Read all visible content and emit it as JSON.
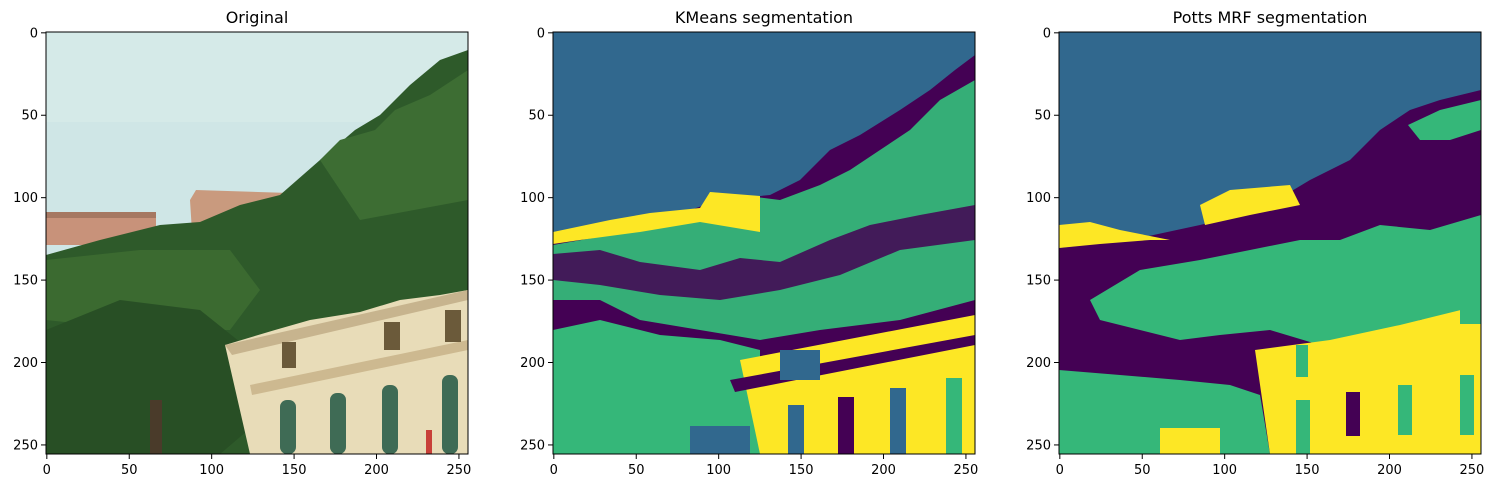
{
  "chart_data": [
    {
      "type": "image",
      "title": "Original",
      "content": "photo of a hillside with green trees, light sky and cream-colored buildings with arched green-shuttered windows",
      "x_ticks": [
        0,
        50,
        100,
        150,
        200,
        250
      ],
      "y_ticks": [
        0,
        50,
        100,
        150,
        200,
        250
      ],
      "xlim": [
        0,
        256
      ],
      "ylim": [
        256,
        0
      ],
      "colors": {
        "sky": "#cfe6e6",
        "foliage": "#2e5a2a",
        "building": "#e8dcb8",
        "roof": "#c99a7e",
        "shutter": "#3f6b55"
      }
    },
    {
      "type": "heatmap",
      "title": "KMeans segmentation",
      "classes": 4,
      "x_ticks": [
        0,
        50,
        100,
        150,
        200,
        250
      ],
      "y_ticks": [
        0,
        50,
        100,
        150,
        200,
        250
      ],
      "xlim": [
        0,
        256
      ],
      "ylim": [
        256,
        0
      ],
      "colors": [
        "#440154",
        "#31688e",
        "#35b779",
        "#fde725"
      ]
    },
    {
      "type": "heatmap",
      "title": "Potts MRF segmentation",
      "classes": 4,
      "x_ticks": [
        0,
        50,
        100,
        150,
        200,
        250
      ],
      "y_ticks": [
        0,
        50,
        100,
        150,
        200,
        250
      ],
      "xlim": [
        0,
        256
      ],
      "ylim": [
        256,
        0
      ],
      "colors": [
        "#440154",
        "#31688e",
        "#35b779",
        "#fde725"
      ]
    }
  ]
}
